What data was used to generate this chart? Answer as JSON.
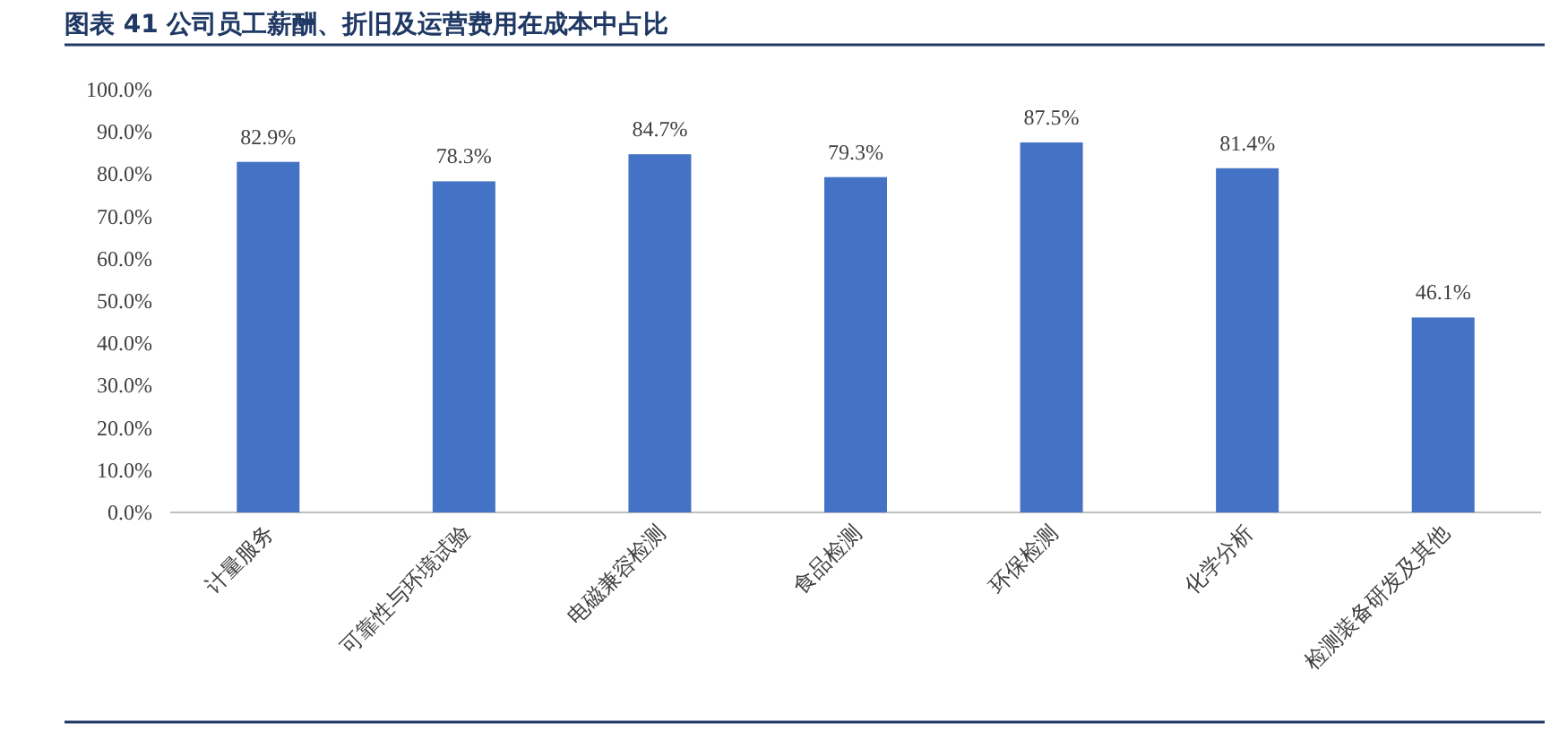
{
  "chart_data": {
    "type": "bar",
    "title": "图表 41  公司员工薪酬、折旧及运营费用在成本中占比",
    "categories": [
      "计量服务",
      "可靠性与环境试验",
      "电磁兼容检测",
      "食品检测",
      "环保检测",
      "化学分析",
      "检测装备研发及其他"
    ],
    "values": [
      82.9,
      78.3,
      84.7,
      79.3,
      87.5,
      81.4,
      46.1
    ],
    "value_labels": [
      "82.9%",
      "78.3%",
      "84.7%",
      "79.3%",
      "87.5%",
      "81.4%",
      "46.1%"
    ],
    "color": "#4472c4",
    "ylim": [
      0,
      100
    ],
    "yticks": [
      {
        "value": 0,
        "label": "0.0%"
      },
      {
        "value": 10,
        "label": "10.0%"
      },
      {
        "value": 20,
        "label": "20.0%"
      },
      {
        "value": 30,
        "label": "30.0%"
      },
      {
        "value": 40,
        "label": "40.0%"
      },
      {
        "value": 50,
        "label": "50.0%"
      },
      {
        "value": 60,
        "label": "60.0%"
      },
      {
        "value": 70,
        "label": "70.0%"
      },
      {
        "value": 80,
        "label": "80.0%"
      },
      {
        "value": 90,
        "label": "90.0%"
      },
      {
        "value": 100,
        "label": "100.0%"
      }
    ],
    "grid": false
  }
}
